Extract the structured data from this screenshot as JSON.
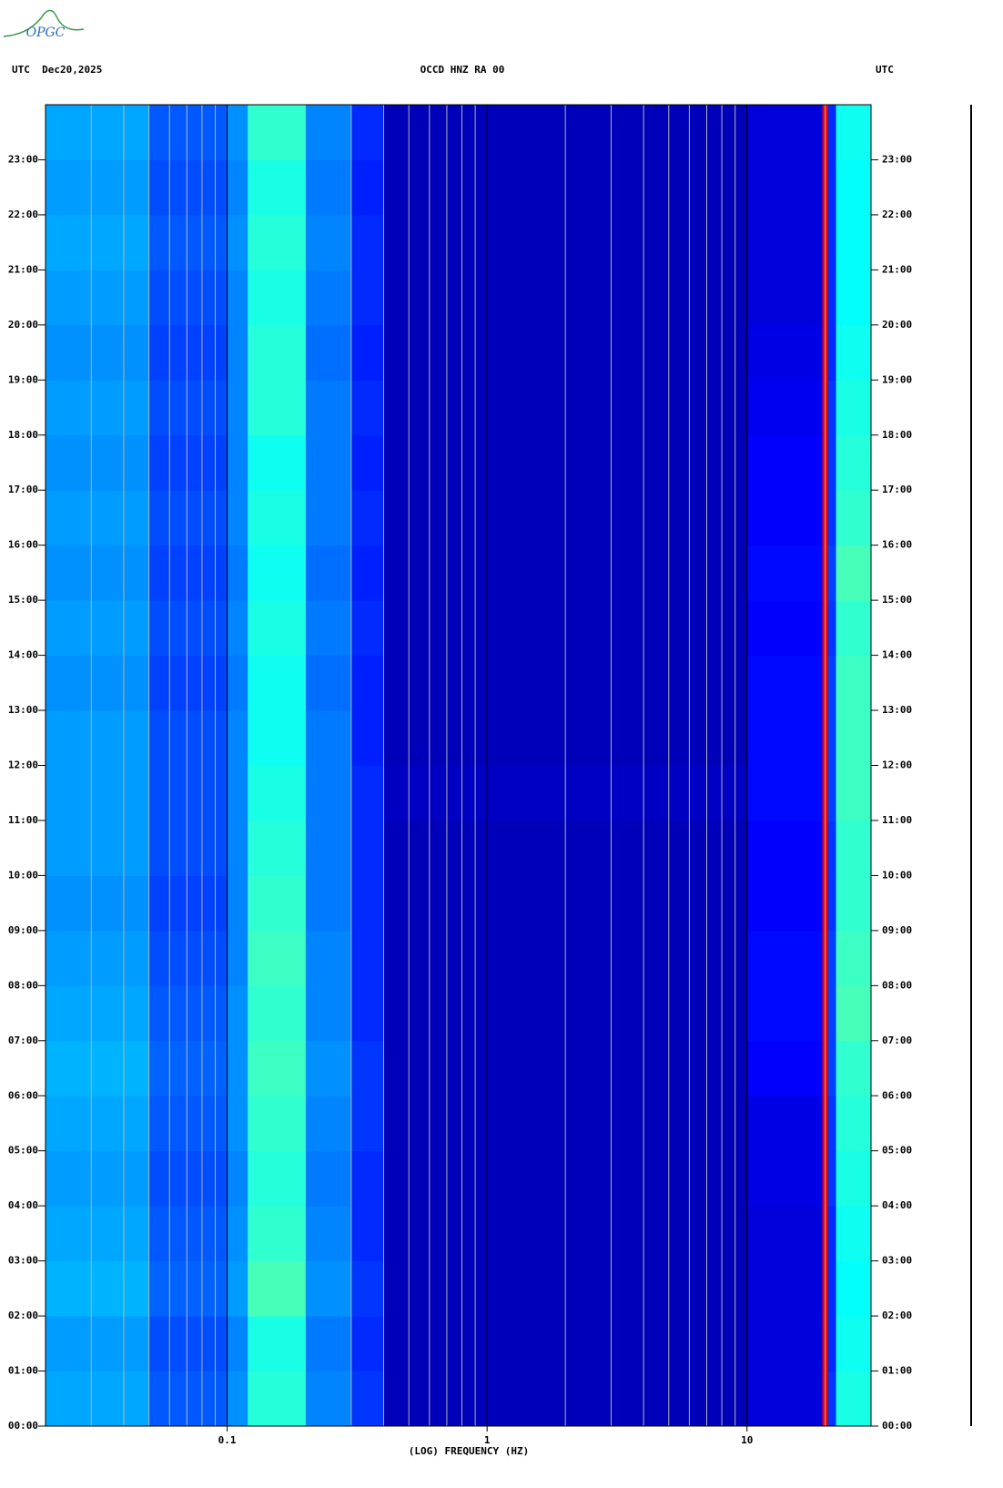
{
  "chart_data": {
    "type": "spectrogram",
    "logo": "OPGC",
    "title_left": "UTC  Dec20,2025",
    "title": "OCCD HNZ RA 00",
    "title_right": "UTC",
    "xlabel": "(LOG) FREQUENCY (HZ)",
    "xscale": "log",
    "xlim": [
      0.02,
      30
    ],
    "xticks": [
      0.1,
      1,
      10
    ],
    "xgrid": [
      0.02,
      0.03,
      0.04,
      0.05,
      0.06,
      0.07,
      0.08,
      0.09,
      0.2,
      0.3,
      0.4,
      0.5,
      0.6,
      0.7,
      0.8,
      0.9,
      2,
      3,
      4,
      5,
      6,
      7,
      8,
      9,
      20,
      30
    ],
    "ylim": [
      0,
      24
    ],
    "yticks": [
      {
        "value": 0,
        "label": "00:00"
      },
      {
        "value": 1,
        "label": "01:00"
      },
      {
        "value": 2,
        "label": "02:00"
      },
      {
        "value": 3,
        "label": "03:00"
      },
      {
        "value": 4,
        "label": "04:00"
      },
      {
        "value": 5,
        "label": "05:00"
      },
      {
        "value": 6,
        "label": "06:00"
      },
      {
        "value": 7,
        "label": "07:00"
      },
      {
        "value": 8,
        "label": "08:00"
      },
      {
        "value": 9,
        "label": "09:00"
      },
      {
        "value": 10,
        "label": "10:00"
      },
      {
        "value": 11,
        "label": "11:00"
      },
      {
        "value": 12,
        "label": "12:00"
      },
      {
        "value": 13,
        "label": "13:00"
      },
      {
        "value": 14,
        "label": "14:00"
      },
      {
        "value": 15,
        "label": "15:00"
      },
      {
        "value": 16,
        "label": "16:00"
      },
      {
        "value": 17,
        "label": "17:00"
      },
      {
        "value": 18,
        "label": "18:00"
      },
      {
        "value": 19,
        "label": "19:00"
      },
      {
        "value": 20,
        "label": "20:00"
      },
      {
        "value": 21,
        "label": "21:00"
      },
      {
        "value": 22,
        "label": "22:00"
      },
      {
        "value": 23,
        "label": "23:00"
      }
    ],
    "frequency_edges": [
      0.02,
      0.05,
      0.1,
      0.12,
      0.2,
      0.3,
      0.4,
      10,
      19.5,
      20.5,
      22,
      30
    ],
    "colormap": "jet",
    "clim": [
      0.1,
      1
    ],
    "power": [
      [
        0.36,
        0.29,
        0.34,
        0.47,
        0.33,
        0.26,
        0.15,
        0.18,
        0.9,
        0.26,
        0.46
      ],
      [
        0.35,
        0.28,
        0.33,
        0.46,
        0.32,
        0.25,
        0.15,
        0.18,
        0.9,
        0.25,
        0.45
      ],
      [
        0.37,
        0.3,
        0.35,
        0.5,
        0.34,
        0.26,
        0.15,
        0.18,
        0.9,
        0.25,
        0.44
      ],
      [
        0.36,
        0.29,
        0.34,
        0.48,
        0.33,
        0.25,
        0.15,
        0.18,
        0.9,
        0.25,
        0.45
      ],
      [
        0.35,
        0.28,
        0.33,
        0.47,
        0.32,
        0.25,
        0.15,
        0.19,
        0.9,
        0.26,
        0.46
      ],
      [
        0.36,
        0.29,
        0.34,
        0.48,
        0.33,
        0.26,
        0.15,
        0.19,
        0.9,
        0.26,
        0.47
      ],
      [
        0.37,
        0.3,
        0.34,
        0.49,
        0.34,
        0.26,
        0.15,
        0.21,
        0.9,
        0.27,
        0.48
      ],
      [
        0.36,
        0.29,
        0.34,
        0.48,
        0.33,
        0.25,
        0.15,
        0.22,
        0.9,
        0.27,
        0.5
      ],
      [
        0.35,
        0.28,
        0.33,
        0.49,
        0.33,
        0.25,
        0.15,
        0.22,
        0.9,
        0.27,
        0.49
      ],
      [
        0.34,
        0.27,
        0.33,
        0.48,
        0.32,
        0.25,
        0.15,
        0.21,
        0.9,
        0.26,
        0.48
      ],
      [
        0.35,
        0.28,
        0.33,
        0.47,
        0.32,
        0.25,
        0.15,
        0.21,
        0.9,
        0.26,
        0.48
      ],
      [
        0.35,
        0.28,
        0.33,
        0.46,
        0.32,
        0.25,
        0.16,
        0.22,
        0.9,
        0.27,
        0.49
      ],
      [
        0.35,
        0.28,
        0.33,
        0.45,
        0.32,
        0.24,
        0.15,
        0.22,
        0.9,
        0.27,
        0.49
      ],
      [
        0.34,
        0.27,
        0.32,
        0.45,
        0.31,
        0.24,
        0.15,
        0.22,
        0.9,
        0.27,
        0.49
      ],
      [
        0.35,
        0.28,
        0.33,
        0.46,
        0.32,
        0.25,
        0.15,
        0.21,
        0.9,
        0.26,
        0.48
      ],
      [
        0.34,
        0.27,
        0.32,
        0.45,
        0.31,
        0.24,
        0.15,
        0.22,
        0.9,
        0.27,
        0.5
      ],
      [
        0.35,
        0.28,
        0.33,
        0.46,
        0.32,
        0.25,
        0.15,
        0.21,
        0.9,
        0.26,
        0.48
      ],
      [
        0.34,
        0.27,
        0.33,
        0.45,
        0.32,
        0.24,
        0.15,
        0.21,
        0.9,
        0.26,
        0.47
      ],
      [
        0.35,
        0.28,
        0.33,
        0.47,
        0.32,
        0.25,
        0.15,
        0.2,
        0.9,
        0.26,
        0.46
      ],
      [
        0.34,
        0.27,
        0.33,
        0.47,
        0.31,
        0.24,
        0.15,
        0.19,
        0.9,
        0.25,
        0.45
      ],
      [
        0.35,
        0.28,
        0.33,
        0.46,
        0.32,
        0.25,
        0.15,
        0.18,
        0.9,
        0.25,
        0.44
      ],
      [
        0.36,
        0.29,
        0.34,
        0.47,
        0.33,
        0.25,
        0.15,
        0.18,
        0.9,
        0.25,
        0.44
      ],
      [
        0.35,
        0.28,
        0.33,
        0.46,
        0.32,
        0.24,
        0.15,
        0.18,
        0.9,
        0.25,
        0.44
      ],
      [
        0.36,
        0.29,
        0.34,
        0.48,
        0.33,
        0.25,
        0.15,
        0.18,
        0.9,
        0.25,
        0.45
      ]
    ]
  }
}
